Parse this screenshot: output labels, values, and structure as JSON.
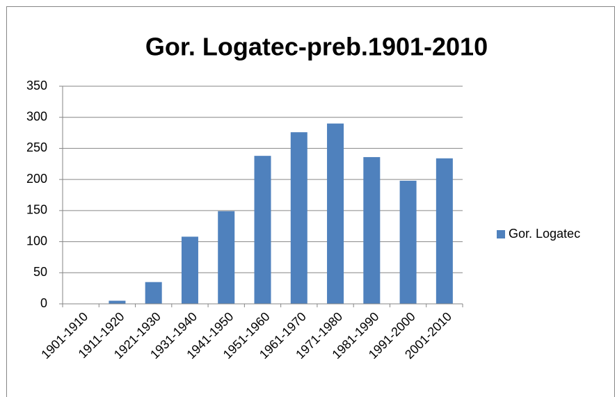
{
  "chart_data": {
    "type": "bar",
    "title": "Gor. Logatec-preb.1901-2010",
    "categories": [
      "1901-1910",
      "1911-1920",
      "1921-1930",
      "1931-1940",
      "1941-1950",
      "1951-1960",
      "1961-1970",
      "1971-1980",
      "1981-1990",
      "1991-2000",
      "2001-2010"
    ],
    "series": [
      {
        "name": "Gor. Logatec",
        "color": "#4f81bd",
        "values": [
          0,
          5,
          35,
          108,
          149,
          238,
          276,
          290,
          236,
          198,
          234
        ]
      }
    ],
    "ylim": [
      0,
      350
    ],
    "yticks": [
      0,
      50,
      100,
      150,
      200,
      250,
      300,
      350
    ],
    "grid": true,
    "legend": "right"
  }
}
